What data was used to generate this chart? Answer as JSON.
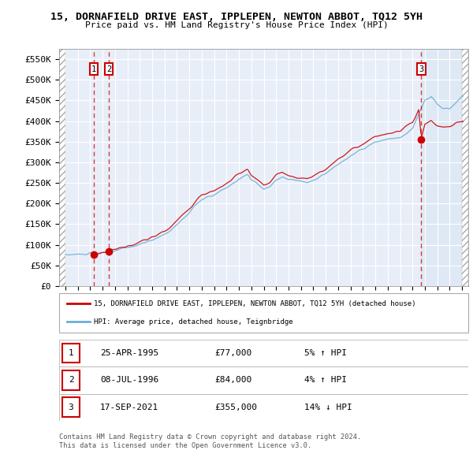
{
  "title": "15, DORNAFIELD DRIVE EAST, IPPLEPEN, NEWTON ABBOT, TQ12 5YH",
  "subtitle": "Price paid vs. HM Land Registry's House Price Index (HPI)",
  "legend_line1": "15, DORNAFIELD DRIVE EAST, IPPLEPEN, NEWTON ABBOT, TQ12 5YH (detached house)",
  "legend_line2": "HPI: Average price, detached house, Teignbridge",
  "footer1": "Contains HM Land Registry data © Crown copyright and database right 2024.",
  "footer2": "This data is licensed under the Open Government Licence v3.0.",
  "transactions": [
    {
      "label": "1",
      "date": "25-APR-1995",
      "price": 77000,
      "pct": "5%",
      "dir": "↑"
    },
    {
      "label": "2",
      "date": "08-JUL-1996",
      "price": 84000,
      "pct": "4%",
      "dir": "↑"
    },
    {
      "label": "3",
      "date": "17-SEP-2021",
      "price": 355000,
      "pct": "14%",
      "dir": "↓"
    }
  ],
  "transaction_years": [
    1995.31,
    1996.52,
    2021.71
  ],
  "transaction_prices": [
    77000,
    84000,
    355000
  ],
  "ylim": [
    0,
    575000
  ],
  "yticks": [
    0,
    50000,
    100000,
    150000,
    200000,
    250000,
    300000,
    350000,
    400000,
    450000,
    500000,
    550000
  ],
  "ytick_labels": [
    "£0",
    "£50K",
    "£100K",
    "£150K",
    "£200K",
    "£250K",
    "£300K",
    "£350K",
    "£400K",
    "£450K",
    "£500K",
    "£550K"
  ],
  "xlim": [
    1992.5,
    2025.5
  ],
  "xticks": [
    1993,
    1994,
    1995,
    1996,
    1997,
    1998,
    1999,
    2000,
    2001,
    2002,
    2003,
    2004,
    2005,
    2006,
    2007,
    2008,
    2009,
    2010,
    2011,
    2012,
    2013,
    2014,
    2015,
    2016,
    2017,
    2018,
    2019,
    2020,
    2021,
    2022,
    2023,
    2024,
    2025
  ],
  "hpi_color": "#6baed6",
  "price_color": "#cc0000",
  "marker_color": "#cc0000",
  "vline_color": "#cc0000",
  "bg_color": "#e8eef8",
  "plot_bg": "#ffffff",
  "shade_color": "#dce8f5",
  "hatch_bg": "#f0f0f0"
}
